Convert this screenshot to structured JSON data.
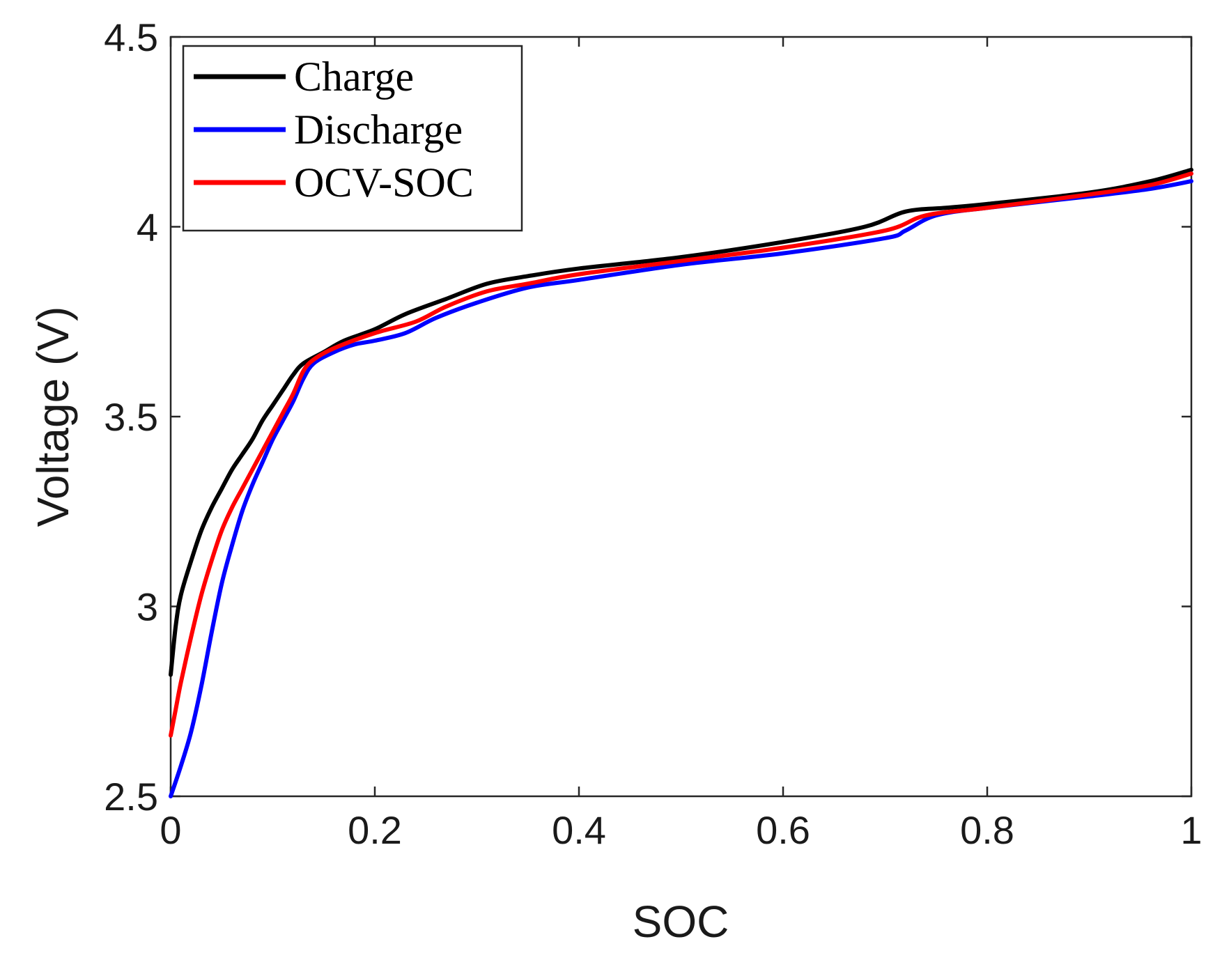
{
  "chart_data": {
    "type": "line",
    "xlabel": "SOC",
    "ylabel": "Voltage (V)",
    "xlim": [
      0,
      1
    ],
    "ylim": [
      2.5,
      4.5
    ],
    "x_ticks": [
      "0",
      "0.2",
      "0.4",
      "0.6",
      "0.8",
      "1"
    ],
    "y_ticks": [
      "2.5",
      "3",
      "3.5",
      "4",
      "4.5"
    ],
    "grid": false,
    "legend_position": "top-left",
    "series": [
      {
        "name": "Charge",
        "color": "#000000",
        "points": [
          [
            0,
            2.82
          ],
          [
            0.005,
            2.95
          ],
          [
            0.01,
            3.03
          ],
          [
            0.02,
            3.12
          ],
          [
            0.03,
            3.2
          ],
          [
            0.04,
            3.26
          ],
          [
            0.05,
            3.31
          ],
          [
            0.06,
            3.36
          ],
          [
            0.07,
            3.4
          ],
          [
            0.08,
            3.44
          ],
          [
            0.09,
            3.49
          ],
          [
            0.1,
            3.53
          ],
          [
            0.11,
            3.57
          ],
          [
            0.12,
            3.61
          ],
          [
            0.13,
            3.64
          ],
          [
            0.15,
            3.67
          ],
          [
            0.17,
            3.7
          ],
          [
            0.2,
            3.73
          ],
          [
            0.23,
            3.77
          ],
          [
            0.27,
            3.81
          ],
          [
            0.31,
            3.85
          ],
          [
            0.35,
            3.87
          ],
          [
            0.4,
            3.89
          ],
          [
            0.5,
            3.92
          ],
          [
            0.6,
            3.96
          ],
          [
            0.68,
            4.0
          ],
          [
            0.72,
            4.04
          ],
          [
            0.76,
            4.05
          ],
          [
            0.8,
            4.06
          ],
          [
            0.9,
            4.09
          ],
          [
            0.96,
            4.12
          ],
          [
            1.0,
            4.15
          ]
        ]
      },
      {
        "name": "Discharge",
        "color": "#0000ff",
        "points": [
          [
            0,
            2.5
          ],
          [
            0.01,
            2.58
          ],
          [
            0.02,
            2.67
          ],
          [
            0.03,
            2.79
          ],
          [
            0.04,
            2.93
          ],
          [
            0.05,
            3.06
          ],
          [
            0.06,
            3.16
          ],
          [
            0.07,
            3.25
          ],
          [
            0.08,
            3.32
          ],
          [
            0.09,
            3.38
          ],
          [
            0.1,
            3.44
          ],
          [
            0.11,
            3.49
          ],
          [
            0.12,
            3.54
          ],
          [
            0.13,
            3.6
          ],
          [
            0.14,
            3.64
          ],
          [
            0.16,
            3.67
          ],
          [
            0.18,
            3.69
          ],
          [
            0.2,
            3.7
          ],
          [
            0.23,
            3.72
          ],
          [
            0.26,
            3.76
          ],
          [
            0.3,
            3.8
          ],
          [
            0.35,
            3.84
          ],
          [
            0.4,
            3.86
          ],
          [
            0.5,
            3.9
          ],
          [
            0.6,
            3.93
          ],
          [
            0.7,
            3.97
          ],
          [
            0.72,
            3.99
          ],
          [
            0.75,
            4.03
          ],
          [
            0.8,
            4.05
          ],
          [
            0.9,
            4.08
          ],
          [
            0.96,
            4.1
          ],
          [
            1.0,
            4.12
          ]
        ]
      },
      {
        "name": "OCV-SOC",
        "color": "#ff0000",
        "points": [
          [
            0,
            2.66
          ],
          [
            0.005,
            2.73
          ],
          [
            0.01,
            2.8
          ],
          [
            0.02,
            2.92
          ],
          [
            0.03,
            3.03
          ],
          [
            0.04,
            3.12
          ],
          [
            0.05,
            3.2
          ],
          [
            0.06,
            3.26
          ],
          [
            0.07,
            3.31
          ],
          [
            0.08,
            3.36
          ],
          [
            0.09,
            3.41
          ],
          [
            0.1,
            3.46
          ],
          [
            0.11,
            3.51
          ],
          [
            0.12,
            3.56
          ],
          [
            0.13,
            3.62
          ],
          [
            0.14,
            3.65
          ],
          [
            0.16,
            3.68
          ],
          [
            0.2,
            3.72
          ],
          [
            0.24,
            3.75
          ],
          [
            0.27,
            3.79
          ],
          [
            0.31,
            3.83
          ],
          [
            0.35,
            3.85
          ],
          [
            0.4,
            3.875
          ],
          [
            0.5,
            3.91
          ],
          [
            0.6,
            3.945
          ],
          [
            0.7,
            3.99
          ],
          [
            0.74,
            4.03
          ],
          [
            0.8,
            4.05
          ],
          [
            0.9,
            4.085
          ],
          [
            0.96,
            4.11
          ],
          [
            1.0,
            4.14
          ]
        ]
      }
    ]
  }
}
